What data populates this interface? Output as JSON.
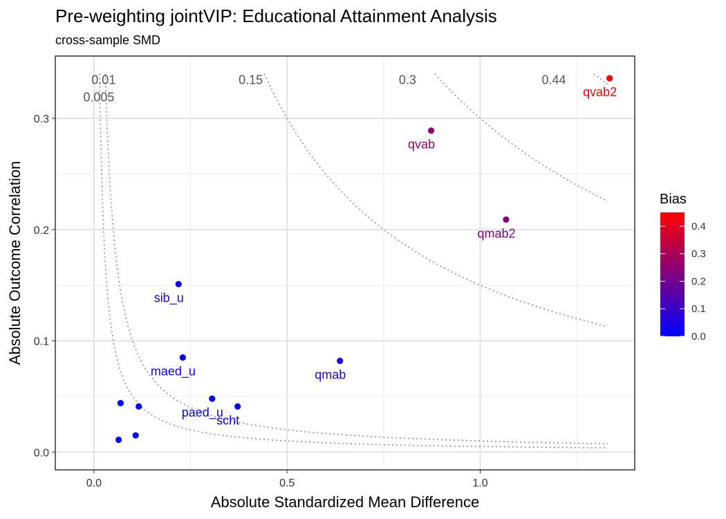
{
  "title": "Pre-weighting jointVIP: Educational Attainment Analysis",
  "subtitle": "cross-sample SMD",
  "chart_data": {
    "type": "scatter",
    "title": "Pre-weighting jointVIP: Educational Attainment Analysis",
    "subtitle": "cross-sample SMD",
    "xlabel": "Absolute Standardized Mean Difference",
    "ylabel": "Absolute Outcome Correlation",
    "xlim": [
      -0.1,
      1.4
    ],
    "ylim": [
      -0.016,
      0.356
    ],
    "x_ticks": [
      0.0,
      0.5,
      1.0
    ],
    "x_tick_labels": [
      "0.0",
      "0.5",
      "1.0"
    ],
    "y_ticks": [
      0.0,
      0.1,
      0.2,
      0.3
    ],
    "y_tick_labels": [
      "0.0",
      "0.1",
      "0.2",
      "0.3"
    ],
    "grid": true,
    "points": [
      {
        "x": 1.335,
        "y": 0.336,
        "bias": 0.448,
        "label": "qvab2"
      },
      {
        "x": 0.873,
        "y": 0.289,
        "bias": 0.252,
        "label": "qvab"
      },
      {
        "x": 1.067,
        "y": 0.209,
        "bias": 0.223,
        "label": "qmab2"
      },
      {
        "x": 0.637,
        "y": 0.082,
        "bias": 0.052,
        "label": "qmab"
      },
      {
        "x": 0.219,
        "y": 0.151,
        "bias": 0.033,
        "label": "sib_u"
      },
      {
        "x": 0.23,
        "y": 0.085,
        "bias": 0.02,
        "label": "maed_u"
      },
      {
        "x": 0.306,
        "y": 0.048,
        "bias": 0.015,
        "label": "paed_u"
      },
      {
        "x": 0.372,
        "y": 0.041,
        "bias": 0.015,
        "label": "scht"
      },
      {
        "x": 0.069,
        "y": 0.044,
        "bias": 0.003,
        "label": ""
      },
      {
        "x": 0.116,
        "y": 0.041,
        "bias": 0.005,
        "label": ""
      },
      {
        "x": 0.064,
        "y": 0.011,
        "bias": 0.001,
        "label": ""
      },
      {
        "x": 0.108,
        "y": 0.015,
        "bias": 0.002,
        "label": ""
      }
    ],
    "bias_contours": [
      {
        "level": 0.005,
        "label": "0.005"
      },
      {
        "level": 0.01,
        "label": "0.01"
      },
      {
        "level": 0.15,
        "label": "0.15"
      },
      {
        "level": 0.3,
        "label": "0.3"
      },
      {
        "level": 0.44,
        "label": "0.44"
      }
    ],
    "legend": {
      "title": "Bias",
      "position": "right",
      "ticks": [
        0.0,
        0.1,
        0.2,
        0.3,
        0.4
      ],
      "tick_labels": [
        "0.0",
        "0.1",
        "0.2",
        "0.3",
        "0.4"
      ],
      "range": [
        0.0,
        0.45
      ],
      "color_low": "#0000ff",
      "color_high": "#ff0000"
    }
  }
}
